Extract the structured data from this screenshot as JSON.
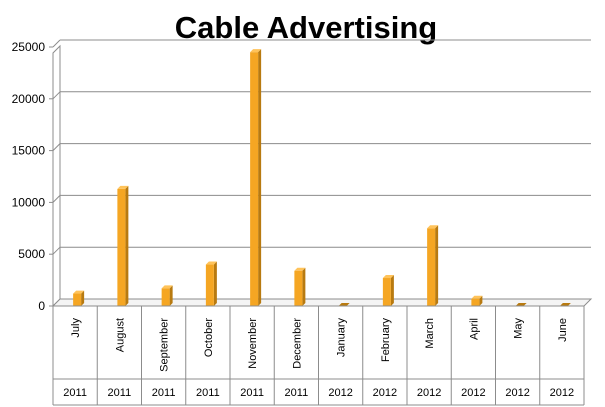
{
  "chart_data": {
    "type": "bar",
    "title": "Cable Advertising",
    "xlabel": "",
    "ylabel": "",
    "ylim": [
      0,
      25000
    ],
    "yticks": [
      0,
      5000,
      10000,
      15000,
      20000,
      25000
    ],
    "grid": true,
    "legend": "none",
    "categories": [
      {
        "month": "July",
        "year": "2011"
      },
      {
        "month": "August",
        "year": "2011"
      },
      {
        "month": "September",
        "year": "2011"
      },
      {
        "month": "October",
        "year": "2011"
      },
      {
        "month": "November",
        "year": "2011"
      },
      {
        "month": "December",
        "year": "2011"
      },
      {
        "month": "January",
        "year": "2012"
      },
      {
        "month": "February",
        "year": "2012"
      },
      {
        "month": "March",
        "year": "2012"
      },
      {
        "month": "April",
        "year": "2012"
      },
      {
        "month": "May",
        "year": "2012"
      },
      {
        "month": "June",
        "year": "2012"
      }
    ],
    "values": [
      1200,
      11300,
      1700,
      4000,
      24500,
      3400,
      0,
      2700,
      7500,
      700,
      0,
      0
    ],
    "bar_color": "#F5A623",
    "bar_side_color": "#B87A10"
  }
}
